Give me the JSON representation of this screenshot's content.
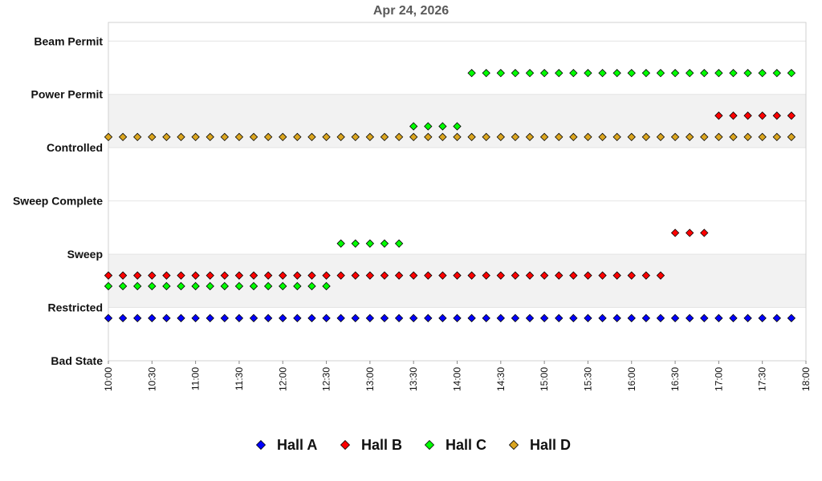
{
  "chart_data": {
    "type": "scatter",
    "title": "Apr 24, 2026",
    "y_categories": [
      "Bad State",
      "Restricted",
      "Sweep",
      "Sweep Complete",
      "Controlled",
      "Power Permit",
      "Beam Permit"
    ],
    "x_ticks": [
      "10:00",
      "10:30",
      "11:00",
      "11:30",
      "12:00",
      "12:30",
      "13:00",
      "13:30",
      "14:00",
      "14:30",
      "15:00",
      "15:30",
      "16:00",
      "16:30",
      "17:00",
      "17:30",
      "18:00"
    ],
    "x_range": [
      "10:00",
      "18:00"
    ],
    "sample_interval_minutes": 10,
    "grid": "alternating horizontal bands",
    "legend_position": "bottom",
    "series": [
      {
        "name": "Hall A",
        "color": "#0000ff",
        "segments": [
          {
            "from": "10:00",
            "to": "17:50",
            "y": 0.8
          }
        ]
      },
      {
        "name": "Hall B",
        "color": "#ff0000",
        "segments": [
          {
            "from": "10:00",
            "to": "16:20",
            "y": 1.6
          },
          {
            "from": "16:30",
            "to": "16:50",
            "y": 2.4
          },
          {
            "from": "17:00",
            "to": "17:50",
            "y": 4.6
          }
        ]
      },
      {
        "name": "Hall C",
        "color": "#00ff00",
        "segments": [
          {
            "from": "10:00",
            "to": "12:30",
            "y": 1.4
          },
          {
            "from": "12:40",
            "to": "13:20",
            "y": 2.2
          },
          {
            "from": "13:30",
            "to": "14:00",
            "y": 4.4
          },
          {
            "from": "14:10",
            "to": "17:50",
            "y": 5.4
          }
        ]
      },
      {
        "name": "Hall D",
        "color": "#daa520",
        "segments": [
          {
            "from": "10:00",
            "to": "17:50",
            "y": 4.2
          }
        ]
      }
    ]
  }
}
